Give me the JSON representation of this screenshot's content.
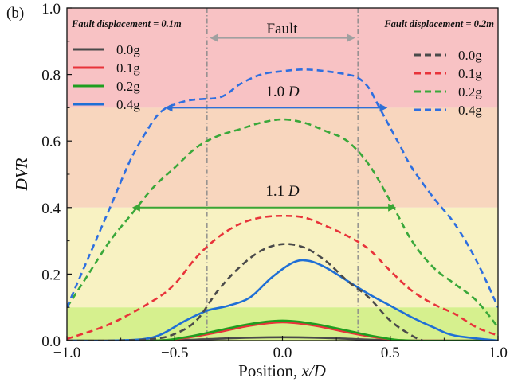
{
  "panel_label": "(b)",
  "chart_data": {
    "type": "line",
    "xlabel": "Position, ",
    "xlabel_var": "x/D",
    "ylabel": "DVR",
    "xlim": [
      -1.0,
      1.0
    ],
    "ylim": [
      0.0,
      1.0
    ],
    "xticks": [
      "−1.0",
      "−0.5",
      "0.0",
      "0.5",
      "1.0"
    ],
    "xtick_values": [
      -1.0,
      -0.5,
      0.0,
      0.5,
      1.0
    ],
    "yticks": [
      "0.0",
      "0.2",
      "0.4",
      "0.6",
      "0.8",
      "1.0"
    ],
    "ytick_values": [
      0.0,
      0.2,
      0.4,
      0.6,
      0.8,
      1.0
    ],
    "bands": [
      {
        "y0": 0.7,
        "y1": 1.0,
        "color": "#f8c2c4"
      },
      {
        "y0": 0.4,
        "y1": 0.7,
        "color": "#f8d6be"
      },
      {
        "y0": 0.1,
        "y1": 0.4,
        "color": "#f8f2c2"
      },
      {
        "y0": 0.0,
        "y1": 0.1,
        "color": "#d6f08e"
      }
    ],
    "fault_lines_x": [
      -0.35,
      0.35
    ],
    "fault_label": "Fault",
    "fault_arrow": {
      "x0": -0.33,
      "x1": 0.33,
      "y": 0.91,
      "color": "#a0a0a0"
    },
    "annotations": [
      {
        "text": "Fault displacement = 0.1m"
      },
      {
        "text": "Fault displacement = 0.2m"
      }
    ],
    "span_arrows": [
      {
        "label_num": "1.0 ",
        "label_var": "D",
        "x0": -0.54,
        "x1": 0.48,
        "y": 0.7,
        "label_x": 0.0,
        "label_y": 0.735,
        "color": "#2e6fd6"
      },
      {
        "label_num": "1.1 ",
        "label_var": "D",
        "x0": -0.69,
        "x1": 0.52,
        "y": 0.4,
        "label_x": 0.0,
        "label_y": 0.435,
        "color": "#3aa535"
      }
    ],
    "legend_left": [
      {
        "label": "0.0g",
        "color": "#4a4a4a",
        "dash": "solid"
      },
      {
        "label": "0.1g",
        "color": "#e8333a",
        "dash": "solid"
      },
      {
        "label": "0.2g",
        "color": "#1f9e1f",
        "dash": "solid"
      },
      {
        "label": "0.4g",
        "color": "#1f6fd6",
        "dash": "solid"
      }
    ],
    "legend_right": [
      {
        "label": "0.0g",
        "color": "#4a4a4a",
        "dash": "dashed"
      },
      {
        "label": "0.1g",
        "color": "#e8333a",
        "dash": "dashed"
      },
      {
        "label": "0.2g",
        "color": "#3aa83a",
        "dash": "dashed"
      },
      {
        "label": "0.4g",
        "color": "#2e6fe0",
        "dash": "dashed"
      }
    ],
    "series": [
      {
        "group": "Fault displacement = 0.1m",
        "label": "0.0g",
        "color": "#4a4a4a",
        "dash": "solid",
        "x": [
          -1.0,
          -0.6,
          -0.4,
          -0.2,
          0.0,
          0.2,
          0.4,
          0.6,
          1.0
        ],
        "y": [
          0.0,
          0.0,
          0.003,
          0.008,
          0.01,
          0.008,
          0.003,
          0.0,
          0.0
        ]
      },
      {
        "group": "Fault displacement = 0.1m",
        "label": "0.1g",
        "color": "#e8333a",
        "dash": "solid",
        "x": [
          -1.0,
          -0.6,
          -0.45,
          -0.3,
          -0.15,
          0.0,
          0.15,
          0.3,
          0.45,
          0.6,
          1.0
        ],
        "y": [
          0.0,
          0.0,
          0.008,
          0.025,
          0.045,
          0.055,
          0.045,
          0.025,
          0.008,
          0.0,
          0.0
        ]
      },
      {
        "group": "Fault displacement = 0.1m",
        "label": "0.2g",
        "color": "#1f9e1f",
        "dash": "solid",
        "x": [
          -1.0,
          -0.6,
          -0.45,
          -0.3,
          -0.15,
          0.0,
          0.15,
          0.3,
          0.45,
          0.6,
          1.0
        ],
        "y": [
          0.0,
          0.0,
          0.01,
          0.03,
          0.05,
          0.06,
          0.05,
          0.03,
          0.01,
          0.0,
          0.0
        ]
      },
      {
        "group": "Fault displacement = 0.1m",
        "label": "0.4g",
        "color": "#1f6fd6",
        "dash": "solid",
        "x": [
          -1.0,
          -0.8,
          -0.6,
          -0.45,
          -0.35,
          -0.25,
          -0.15,
          -0.05,
          0.05,
          0.12,
          0.2,
          0.3,
          0.4,
          0.5,
          0.6,
          0.7,
          0.8,
          1.0
        ],
        "y": [
          0.0,
          0.0,
          0.01,
          0.06,
          0.09,
          0.105,
          0.13,
          0.19,
          0.235,
          0.24,
          0.22,
          0.18,
          0.14,
          0.105,
          0.07,
          0.04,
          0.015,
          0.0
        ]
      },
      {
        "group": "Fault displacement = 0.2m",
        "label": "0.0g",
        "color": "#4a4a4a",
        "dash": "dashed",
        "x": [
          -1.0,
          -0.8,
          -0.6,
          -0.5,
          -0.4,
          -0.3,
          -0.2,
          -0.1,
          0.0,
          0.1,
          0.2,
          0.3,
          0.4,
          0.5,
          0.6,
          0.65
        ],
        "y": [
          0.0,
          0.0,
          0.005,
          0.02,
          0.06,
          0.15,
          0.22,
          0.27,
          0.29,
          0.28,
          0.24,
          0.18,
          0.13,
          0.06,
          0.015,
          0.0
        ]
      },
      {
        "group": "Fault displacement = 0.2m",
        "label": "0.1g",
        "color": "#e8333a",
        "dash": "dashed",
        "x": [
          -1.0,
          -0.8,
          -0.6,
          -0.5,
          -0.4,
          -0.3,
          -0.2,
          -0.1,
          0.0,
          0.1,
          0.2,
          0.3,
          0.4,
          0.5,
          0.6,
          0.7,
          0.8,
          0.9,
          1.0
        ],
        "y": [
          0.005,
          0.05,
          0.12,
          0.17,
          0.25,
          0.31,
          0.35,
          0.37,
          0.375,
          0.37,
          0.345,
          0.315,
          0.275,
          0.21,
          0.15,
          0.11,
          0.08,
          0.04,
          0.015
        ]
      },
      {
        "group": "Fault displacement = 0.2m",
        "label": "0.2g",
        "color": "#3aa83a",
        "dash": "dashed",
        "x": [
          -1.0,
          -0.9,
          -0.8,
          -0.7,
          -0.6,
          -0.5,
          -0.4,
          -0.3,
          -0.2,
          -0.1,
          0.0,
          0.1,
          0.2,
          0.3,
          0.4,
          0.5,
          0.6,
          0.7,
          0.8,
          0.9,
          1.0
        ],
        "y": [
          0.1,
          0.2,
          0.3,
          0.38,
          0.46,
          0.52,
          0.58,
          0.615,
          0.635,
          0.655,
          0.665,
          0.655,
          0.63,
          0.6,
          0.53,
          0.42,
          0.3,
          0.22,
          0.17,
          0.12,
          0.04
        ]
      },
      {
        "group": "Fault displacement = 0.2m",
        "label": "0.4g",
        "color": "#2e6fe0",
        "dash": "dashed",
        "x": [
          -1.0,
          -0.9,
          -0.8,
          -0.7,
          -0.6,
          -0.55,
          -0.5,
          -0.45,
          -0.4,
          -0.3,
          -0.25,
          -0.2,
          -0.1,
          0.0,
          0.1,
          0.2,
          0.3,
          0.35,
          0.4,
          0.45,
          0.5,
          0.55,
          0.6,
          0.7,
          0.8,
          0.9,
          1.0
        ],
        "y": [
          0.1,
          0.25,
          0.4,
          0.55,
          0.66,
          0.695,
          0.71,
          0.72,
          0.725,
          0.73,
          0.745,
          0.77,
          0.8,
          0.81,
          0.815,
          0.81,
          0.8,
          0.79,
          0.76,
          0.7,
          0.64,
          0.58,
          0.52,
          0.43,
          0.35,
          0.24,
          0.1
        ]
      }
    ]
  }
}
